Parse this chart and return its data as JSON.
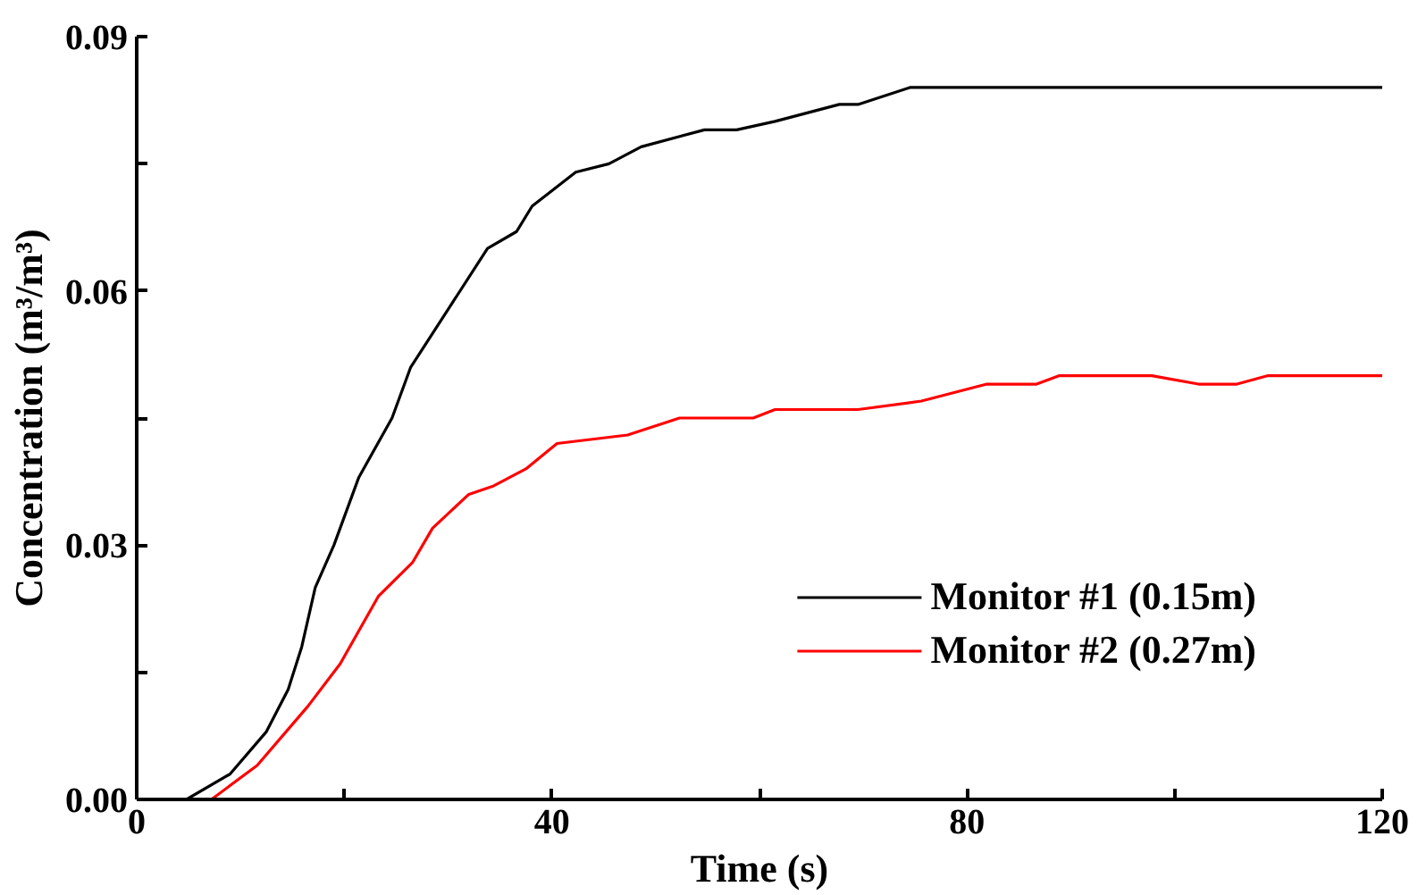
{
  "chart_data": {
    "type": "line",
    "xlabel": "Time (s)",
    "ylabel": "Concentration (m³/m³)",
    "xlim": [
      0,
      120
    ],
    "ylim": [
      0,
      0.09
    ],
    "xticks": [
      0,
      {
        "value": 20,
        "label": null
      },
      40,
      {
        "value": 60,
        "label": null
      },
      80,
      {
        "value": 100,
        "label": null
      },
      120
    ],
    "yticks": [
      {
        "value": 0,
        "label": "0.00"
      },
      {
        "value": 0.015,
        "label": null
      },
      {
        "value": 0.03,
        "label": "0.03"
      },
      {
        "value": 0.045,
        "label": null
      },
      {
        "value": 0.06,
        "label": "0.06"
      },
      {
        "value": 0.075,
        "label": null
      },
      {
        "value": 0.09,
        "label": "0.09"
      }
    ],
    "legend": "bottom right",
    "grid": false,
    "line_style": "solid",
    "marker": "none",
    "series": [
      {
        "name": "Monitor #1 (0.15m)",
        "color": "#000000",
        "x": [
          0,
          4.8,
          9,
          12.5,
          14.6,
          15.9,
          17.2,
          19,
          21.4,
          24.6,
          26.4,
          30.1,
          33.8,
          36.6,
          38.1,
          42.3,
          45.5,
          48.6,
          54.7,
          57.8,
          61.5,
          67.7,
          69.5,
          74.5,
          120
        ],
        "values": [
          0,
          0,
          0.003,
          0.008,
          0.013,
          0.018,
          0.025,
          0.03,
          0.038,
          0.045,
          0.051,
          0.058,
          0.065,
          0.067,
          0.07,
          0.074,
          0.075,
          0.077,
          0.079,
          0.079,
          0.08,
          0.082,
          0.082,
          0.084,
          0.084
        ]
      },
      {
        "name": "Monitor #2 (0.27m)",
        "color": "#ff0000",
        "x": [
          0,
          7.2,
          11.6,
          16.5,
          19.6,
          23.3,
          26.6,
          28.5,
          32,
          34.4,
          37.5,
          40.5,
          47.3,
          52.3,
          59.4,
          61.5,
          69.5,
          75.6,
          81.9,
          86.7,
          88.9,
          97.8,
          102.3,
          106,
          109,
          120
        ],
        "values": [
          0,
          0,
          0.004,
          0.011,
          0.016,
          0.024,
          0.028,
          0.032,
          0.036,
          0.037,
          0.039,
          0.042,
          0.043,
          0.045,
          0.045,
          0.046,
          0.046,
          0.047,
          0.049,
          0.049,
          0.05,
          0.05,
          0.049,
          0.049,
          0.05,
          0.05
        ]
      }
    ]
  }
}
